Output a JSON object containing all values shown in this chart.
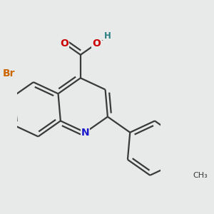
{
  "background_color": "#e8eaea",
  "bond_color": "#3a3a3a",
  "bond_width": 1.6,
  "dbo": 0.055,
  "atom_colors": {
    "N": "#1a1acc",
    "O": "#cc0000",
    "Br": "#cc6600",
    "H": "#2a8080",
    "C": "#3a3a3a"
  },
  "font_size_main": 10,
  "font_size_small": 8.5
}
